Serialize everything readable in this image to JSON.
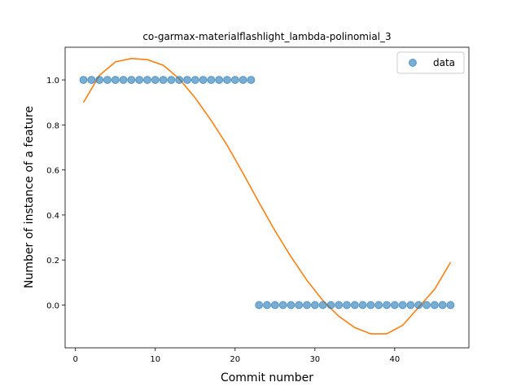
{
  "chart_data": {
    "type": "scatter",
    "title": "co-garmax-materialflashlight_lambda-polinomial_3",
    "xlabel": "Commit number",
    "ylabel": "Number of instance of a feature",
    "xlim": [
      -1.3,
      49.3
    ],
    "ylim": [
      -0.19,
      1.145
    ],
    "xticks": [
      0,
      10,
      20,
      30,
      40
    ],
    "yticks": [
      0.0,
      0.2,
      0.4,
      0.6,
      0.8,
      1.0
    ],
    "xtick_labels": [
      "0",
      "10",
      "20",
      "30",
      "40"
    ],
    "ytick_labels": [
      "0.0",
      "0.2",
      "0.4",
      "0.6",
      "0.8",
      "1.0"
    ],
    "grid": false,
    "legend_position": "top-right",
    "series": [
      {
        "name": "data",
        "kind": "scatter",
        "color": "#1f77b4",
        "x": [
          1,
          2,
          3,
          4,
          5,
          6,
          7,
          8,
          9,
          10,
          11,
          12,
          13,
          14,
          15,
          16,
          17,
          18,
          19,
          20,
          21,
          22,
          23,
          24,
          25,
          26,
          27,
          28,
          29,
          30,
          31,
          32,
          33,
          34,
          35,
          36,
          37,
          38,
          39,
          40,
          41,
          42,
          43,
          44,
          45,
          46,
          47
        ],
        "y": [
          1,
          1,
          1,
          1,
          1,
          1,
          1,
          1,
          1,
          1,
          1,
          1,
          1,
          1,
          1,
          1,
          1,
          1,
          1,
          1,
          1,
          1,
          0,
          0,
          0,
          0,
          0,
          0,
          0,
          0,
          0,
          0,
          0,
          0,
          0,
          0,
          0,
          0,
          0,
          0,
          0,
          0,
          0,
          0,
          0,
          0,
          0
        ]
      },
      {
        "kind": "line",
        "color": "#ff7f0e",
        "x": [
          1,
          3,
          5,
          7,
          9,
          11,
          13,
          15,
          17,
          19,
          21,
          23,
          25,
          27,
          29,
          31,
          33,
          35,
          37,
          39,
          41,
          43,
          45,
          47
        ],
        "y": [
          0.9,
          1.02,
          1.08,
          1.095,
          1.09,
          1.065,
          1.005,
          0.92,
          0.82,
          0.71,
          0.585,
          0.455,
          0.33,
          0.215,
          0.11,
          0.02,
          -0.05,
          -0.1,
          -0.128,
          -0.128,
          -0.09,
          -0.01,
          0.07,
          0.19
        ]
      }
    ]
  }
}
